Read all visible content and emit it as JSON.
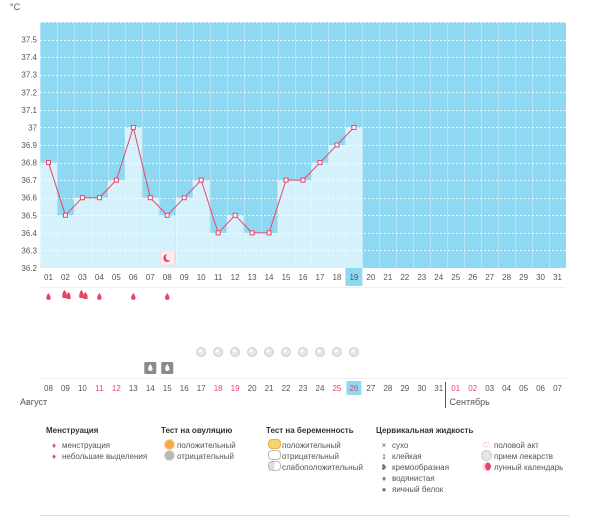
{
  "unit_label": "°C",
  "y_ticks": [
    "37.5",
    "37.4",
    "37.3",
    "37.2",
    "37.1",
    "37",
    "36.9",
    "36.8",
    "36.7",
    "36.6",
    "36.5",
    "36.4",
    "36.3",
    "36.2"
  ],
  "day_labels": [
    "01",
    "02",
    "03",
    "04",
    "05",
    "06",
    "07",
    "08",
    "09",
    "10",
    "11",
    "12",
    "13",
    "14",
    "15",
    "16",
    "17",
    "18",
    "19",
    "20",
    "21",
    "22",
    "23",
    "24",
    "25",
    "26",
    "27",
    "28",
    "29",
    "30",
    "31"
  ],
  "highlight_day": "19",
  "calendar_dates": [
    {
      "d": "08",
      "red": false
    },
    {
      "d": "09",
      "red": false
    },
    {
      "d": "10",
      "red": false
    },
    {
      "d": "11",
      "red": true
    },
    {
      "d": "12",
      "red": true
    },
    {
      "d": "13",
      "red": false
    },
    {
      "d": "14",
      "red": false
    },
    {
      "d": "15",
      "red": false
    },
    {
      "d": "16",
      "red": false
    },
    {
      "d": "17",
      "red": false
    },
    {
      "d": "18",
      "red": true
    },
    {
      "d": "19",
      "red": true
    },
    {
      "d": "20",
      "red": false
    },
    {
      "d": "21",
      "red": false
    },
    {
      "d": "22",
      "red": false
    },
    {
      "d": "23",
      "red": false
    },
    {
      "d": "24",
      "red": false
    },
    {
      "d": "25",
      "red": true
    },
    {
      "d": "26",
      "red": true
    },
    {
      "d": "27",
      "red": false
    },
    {
      "d": "28",
      "red": false
    },
    {
      "d": "29",
      "red": false
    },
    {
      "d": "30",
      "red": false
    },
    {
      "d": "31",
      "red": false
    },
    {
      "d": "01",
      "red": true
    },
    {
      "d": "02",
      "red": true
    },
    {
      "d": "03",
      "red": false
    },
    {
      "d": "04",
      "red": false
    },
    {
      "d": "05",
      "red": false
    },
    {
      "d": "06",
      "red": false
    },
    {
      "d": "07",
      "red": false
    }
  ],
  "today_date_index": 18,
  "month_left": "Август",
  "month_right": "Сентябрь",
  "colors": {
    "chart_bg": "#8ed8f2",
    "bar": "#d4f1fc",
    "line": "#e8456a",
    "grid": "#ffffff",
    "highlight": "#8ed8f2"
  },
  "chart_data": {
    "type": "line",
    "x": [
      "01",
      "02",
      "03",
      "04",
      "05",
      "06",
      "07",
      "08",
      "09",
      "10",
      "11",
      "12",
      "13",
      "14",
      "15",
      "16",
      "17",
      "18",
      "19"
    ],
    "values": [
      36.8,
      36.5,
      36.6,
      36.6,
      36.7,
      37.0,
      36.6,
      36.5,
      36.6,
      36.7,
      36.4,
      36.5,
      36.4,
      36.4,
      36.7,
      36.7,
      36.8,
      36.9,
      37.0
    ],
    "ylim": [
      36.2,
      37.6
    ],
    "xlabel": "",
    "ylabel": "°C",
    "grid": true
  },
  "mens_row": [
    {
      "day": 1,
      "type": "small"
    },
    {
      "day": 2,
      "type": "big"
    },
    {
      "day": 3,
      "type": "big"
    },
    {
      "day": 4,
      "type": "small"
    },
    {
      "day": 6,
      "type": "small"
    },
    {
      "day": 8,
      "type": "small"
    }
  ],
  "pill_days": [
    10,
    11,
    12,
    13,
    14,
    15,
    16,
    17,
    18,
    19
  ],
  "fluid_days": [
    7,
    8
  ],
  "moon_day": 8,
  "legend": {
    "menstruation": {
      "title": "Менструация",
      "items": [
        "менструация",
        "небольшие выделения"
      ]
    },
    "ovulation": {
      "title": "Тест на овуляцию",
      "items": [
        "положительный",
        "отрицательный"
      ]
    },
    "pregnancy": {
      "title": "Тест на беременность",
      "items": [
        "положительный",
        "отрицательный",
        "слабоположительный"
      ]
    },
    "fluid": {
      "title": "Цервикальная жидкость",
      "items": [
        "сухо",
        "клейкая",
        "кремообразная",
        "водянистая",
        "яичный белок"
      ]
    },
    "other": {
      "items": [
        "половой акт",
        "прием лекарств",
        "лунный календарь"
      ]
    }
  }
}
